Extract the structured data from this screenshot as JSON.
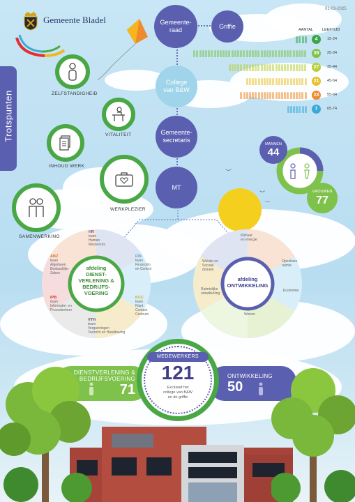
{
  "header": {
    "org_name": "Gemeente Bladel",
    "date": "01-03-2025"
  },
  "side_tab": {
    "label": "Trotspunten"
  },
  "org_chart": {
    "raad": "Gemeente-\nraad",
    "griffie": "Griffie",
    "college": "College\nvan B&W",
    "secretaris": "Gemeente-\nsecretaris",
    "mt": "MT"
  },
  "values": {
    "zelfstandigheid": "ZELFSTANDIGHEID",
    "vitaliteit": "VITALITEIT",
    "inhoud_werk": "INHOUD WERK",
    "werkplezier": "WERKPLEZIER",
    "samenwerking": "SAMENWERKING"
  },
  "age_table": {
    "header_aantal": "AANTAL",
    "header_leeftijd": "LEEFTIJD",
    "rows": [
      {
        "count": "4",
        "range": "15-24",
        "color": "#3aa548"
      },
      {
        "count": "39",
        "range": "25-34",
        "color": "#7ec24c"
      },
      {
        "count": "27",
        "range": "35-44",
        "color": "#b8cf3a"
      },
      {
        "count": "21",
        "range": "45-54",
        "color": "#e7c12a"
      },
      {
        "count": "23",
        "range": "55-64",
        "color": "#ef8a2d"
      },
      {
        "count": "7",
        "range": "65-74",
        "color": "#3aa9d8"
      }
    ]
  },
  "gender": {
    "mannen_label": "MANNEN",
    "mannen_value": "44",
    "vrouwen_label": "VROUWEN",
    "vrouwen_value": "77",
    "colors": {
      "mannen": "#5b5fb0",
      "vrouwen": "#7ec24c"
    }
  },
  "dept_dienst": {
    "center": "afdeling\nDIENST-\nVERLENING &\nBEDRIJFS-\nVOERING",
    "teams": [
      {
        "code": "HR",
        "text": "team\nHuman\nResources",
        "color": "#5b5fb0"
      },
      {
        "code": "FIN",
        "text": "team\nFinanciën\nen Control",
        "color": "#3aa9d8"
      },
      {
        "code": "KCC",
        "text": "team\nKlant\nContact\nCentrum",
        "color": "#e0a020"
      },
      {
        "code": "VTH",
        "text": "team\nVergunningen\nToezicht en Handhaving",
        "color": "#555"
      },
      {
        "code": "IPB",
        "text": "team\nInformatie- en\nProcesbeheer",
        "color": "#e03030"
      },
      {
        "code": "ABZ",
        "text": "team\nAlgemeen\nBestuurlijke\nZaken",
        "color": "#e07020"
      }
    ]
  },
  "dept_ontw": {
    "center": "afdeling\nONTWIKKELING",
    "domains": [
      "Klimaat\nen energie",
      "Openbare\nruimte",
      "Economie",
      "Wonen",
      "Ruimtelijke\nontwikkeling",
      "Welzijn en\nSociaal\ndomein"
    ]
  },
  "totals": {
    "left_label": "DIENSTVERLENING &\nBEDRIJFSVOERING",
    "left_value": "71",
    "center_label": "MEDEWERKERS",
    "center_value": "121",
    "center_note": "Exclusief het\ncollege van B&W\nen de griffie",
    "right_label": "ONTWIKKELING",
    "right_value": "50"
  }
}
